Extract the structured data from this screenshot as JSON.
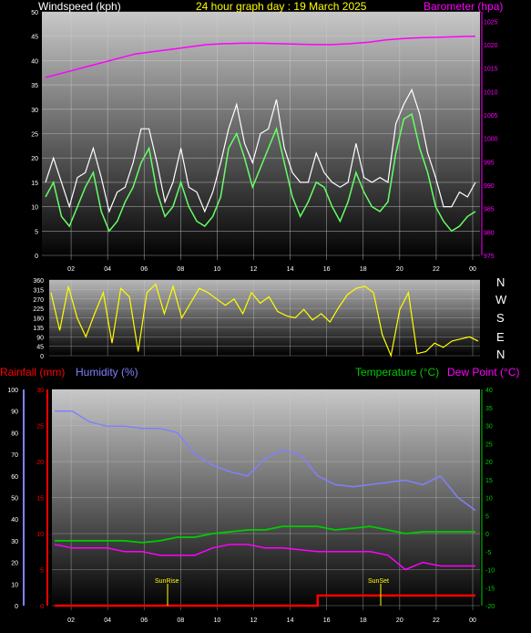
{
  "header": {
    "windspeed_label": "Windspeed (kph)",
    "date_title": "24 hour graph day : 19 March 2025",
    "barometer_label": "Barometer (hpa)"
  },
  "bottom_header": {
    "rainfall_label": "Rainfall (mm)",
    "humidity_label": "Humidity (%)",
    "temperature_label": "Temperature (°C)",
    "dewpoint_label": "Dew Point (°C)"
  },
  "annotations": {
    "sunrise": "SunRise",
    "sunset": "SunSet"
  },
  "direction_labels": [
    "N",
    "W",
    "S",
    "E",
    "N"
  ],
  "colors": {
    "windspeed_label": "#ffffff",
    "title": "#ffff00",
    "barometer": "#ff00ff",
    "wind_gust": "#ffffff",
    "wind_avg": "#66ff66",
    "direction": "#ffff00",
    "rainfall": "#ff0000",
    "humidity": "#8080ff",
    "temperature": "#00cc00",
    "dewpoint": "#ff00ff",
    "grid": "#cccccc"
  },
  "chart_data": [
    {
      "type": "line",
      "x_ticks": [
        "02",
        "04",
        "06",
        "08",
        "10",
        "12",
        "14",
        "16",
        "18",
        "20",
        "22",
        "00"
      ],
      "y_left_ticks": [
        "0",
        "5",
        "10",
        "15",
        "20",
        "25",
        "30",
        "35",
        "40",
        "45",
        "50"
      ],
      "y_right_ticks": [
        "975",
        "980",
        "985",
        "990",
        "995",
        "1000",
        "1005",
        "1010",
        "1015",
        "1020",
        "1025"
      ],
      "ylim_left": [
        0,
        50
      ],
      "ylim_right": [
        975,
        1027
      ],
      "series": [
        {
          "name": "Windspeed (kph)",
          "axis": "left",
          "values": [
            12,
            15,
            8,
            6,
            10,
            14,
            17,
            9,
            5,
            7,
            11,
            14,
            19,
            22,
            13,
            8,
            10,
            15,
            10,
            7,
            6,
            8,
            12,
            22,
            25,
            20,
            14,
            18,
            22,
            26,
            19,
            12,
            8,
            11,
            15,
            14,
            10,
            7,
            11,
            17,
            13,
            10,
            9,
            11,
            21,
            28,
            29,
            22,
            17,
            10,
            7,
            5,
            6,
            8,
            9
          ]
        },
        {
          "name": "Barometer (hpa)",
          "axis": "right",
          "values": [
            1013,
            1014,
            1015,
            1016,
            1017,
            1018,
            1018.5,
            1019,
            1019.5,
            1020,
            1020.2,
            1020.3,
            1020.3,
            1020.2,
            1020.1,
            1020,
            1020,
            1020.2,
            1020.5,
            1021,
            1021.3,
            1021.5,
            1021.6,
            1021.7,
            1021.8
          ]
        }
      ]
    },
    {
      "type": "line",
      "y_ticks": [
        "0",
        "45",
        "90",
        "135",
        "180",
        "225",
        "270",
        "315",
        "360"
      ],
      "ylim": [
        0,
        360
      ],
      "series": [
        {
          "name": "Wind direction",
          "values": [
            300,
            120,
            330,
            180,
            90,
            200,
            300,
            60,
            320,
            280,
            20,
            300,
            340,
            200,
            330,
            180,
            250,
            320,
            300,
            270,
            240,
            270,
            200,
            300,
            250,
            280,
            210,
            190,
            180,
            220,
            170,
            200,
            160,
            230,
            290,
            320,
            330,
            300,
            100,
            0,
            220,
            300,
            10,
            20,
            60,
            40,
            70,
            80,
            90,
            70
          ]
        }
      ]
    },
    {
      "type": "line",
      "x_ticks": [
        "02",
        "04",
        "06",
        "08",
        "10",
        "12",
        "14",
        "16",
        "18",
        "20",
        "22",
        "00"
      ],
      "y_humidity_ticks": [
        "0",
        "10",
        "20",
        "30",
        "40",
        "50",
        "60",
        "70",
        "80",
        "90",
        "100"
      ],
      "y_rainfall_ticks": [
        "0",
        "5",
        "10",
        "15",
        "20",
        "25",
        "30"
      ],
      "y_temp_ticks": [
        "40",
        "35",
        "30",
        "25",
        "20",
        "15",
        "10",
        "5",
        "0",
        "-5",
        "-10",
        "-15",
        "-20"
      ],
      "ylim_humidity": [
        0,
        100
      ],
      "ylim_rainfall": [
        0,
        30
      ],
      "ylim_temperature": [
        -20,
        40
      ],
      "series": [
        {
          "name": "Rainfall (mm)",
          "axis": "rainfall",
          "values": [
            0,
            0,
            0,
            0,
            0,
            0,
            0,
            0,
            0,
            0,
            0,
            0,
            0,
            0,
            0,
            1.4,
            1.4,
            1.4,
            1.4,
            1.4,
            1.4,
            1.4,
            1.4,
            1.4,
            1.4
          ]
        },
        {
          "name": "Humidity (%)",
          "axis": "humidity",
          "values": [
            90,
            90,
            85,
            83,
            83,
            82,
            82,
            80,
            70,
            65,
            62,
            60,
            68,
            72,
            70,
            60,
            56,
            55,
            56,
            57,
            58,
            56,
            60,
            50,
            44
          ]
        },
        {
          "name": "Temperature (°C)",
          "axis": "temperature",
          "values": [
            -2,
            -2,
            -2,
            -2,
            -2,
            -2.5,
            -2,
            -1,
            -1,
            0,
            0.5,
            1,
            1,
            2,
            2,
            2,
            1,
            1.5,
            2,
            1,
            0,
            0.5,
            0.5,
            0.5,
            0.5
          ]
        },
        {
          "name": "Dew Point (°C)",
          "axis": "temperature",
          "values": [
            -3,
            -4,
            -4,
            -4,
            -5,
            -5,
            -6,
            -6,
            -6,
            -4,
            -3,
            -3,
            -4,
            -4,
            -4.5,
            -5,
            -5,
            -5,
            -5,
            -6,
            -10,
            -8,
            -9,
            -9,
            -9
          ]
        }
      ]
    }
  ]
}
